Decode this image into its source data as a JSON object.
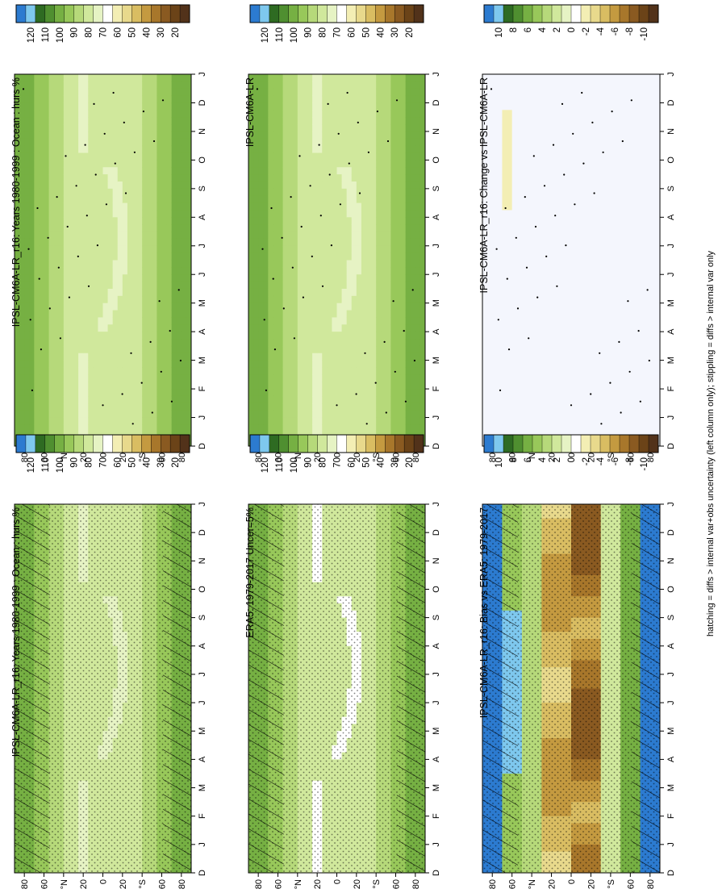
{
  "figure": {
    "footnote": "hatching = diffs > internal var+obs uncertainty (left column only); stippling = diffs > internal var only"
  },
  "chart_data": [
    {
      "type": "heatmap",
      "title": "IPSL-CM6A-LR_r16: Years 1980-1999 : Ocean : hurs %",
      "x_ticks": [
        "D",
        "J",
        "F",
        "M",
        "A",
        "M",
        "J",
        "J",
        "A",
        "S",
        "O",
        "N",
        "D",
        "J"
      ],
      "lat_ticks": [
        "80",
        "60",
        "°N",
        "20",
        "0",
        "20",
        "°S",
        "60",
        "80"
      ],
      "colorbar": {
        "key": "abs",
        "labels": [
          "120",
          "110",
          "100",
          "90",
          "80",
          "70",
          "60",
          "50",
          "40",
          "30",
          "20"
        ]
      },
      "kind": "abs",
      "hatch": true,
      "stipple": "dense"
    },
    {
      "type": "heatmap",
      "title": "IPSL-CM6A-LR_r16: Years 1980-1999 : Ocean : hurs %",
      "x_ticks": [
        "D",
        "J",
        "F",
        "M",
        "A",
        "M",
        "J",
        "J",
        "A",
        "S",
        "O",
        "N",
        "D",
        "J"
      ],
      "lat_ticks": [
        "80",
        "60",
        "°N",
        "20",
        "0",
        "20",
        "°S",
        "60",
        "80"
      ],
      "colorbar": {
        "key": "abs",
        "labels": [
          "120",
          "110",
          "100",
          "90",
          "80",
          "70",
          "60",
          "50",
          "40",
          "30",
          "20"
        ]
      },
      "kind": "abs",
      "hatch": false,
      "stipple": "sparse"
    },
    {
      "type": "heatmap",
      "title": "ERA5: 1979-2017 Uncer=5%",
      "x_ticks": [
        "D",
        "J",
        "F",
        "M",
        "A",
        "M",
        "J",
        "J",
        "A",
        "S",
        "O",
        "N",
        "D",
        "J"
      ],
      "lat_ticks": [
        "80",
        "60",
        "°N",
        "20",
        "0",
        "20",
        "°S",
        "60",
        "80"
      ],
      "colorbar": {
        "key": "abs",
        "labels": [
          "120",
          "110",
          "100",
          "90",
          "80",
          "70",
          "60",
          "50",
          "40",
          "30",
          "20"
        ]
      },
      "kind": "abs",
      "hatch": true,
      "stipple": "dense"
    },
    {
      "type": "heatmap",
      "title": "IPSL-CM6A-LR",
      "x_ticks": [
        "D",
        "J",
        "F",
        "M",
        "A",
        "M",
        "J",
        "J",
        "A",
        "S",
        "O",
        "N",
        "D",
        "J"
      ],
      "lat_ticks": [
        "80",
        "60",
        "°N",
        "20",
        "0",
        "20",
        "°S",
        "60",
        "80"
      ],
      "colorbar": {
        "key": "abs",
        "labels": [
          "120",
          "110",
          "100",
          "90",
          "80",
          "70",
          "60",
          "50",
          "40",
          "30",
          "20"
        ]
      },
      "kind": "abs",
      "hatch": false,
      "stipple": "sparse"
    },
    {
      "type": "heatmap",
      "title": "IPSL-CM6A-LR_r16: Bias vs ERA5: 1979-2017",
      "x_ticks": [
        "D",
        "J",
        "F",
        "M",
        "A",
        "M",
        "J",
        "J",
        "A",
        "S",
        "O",
        "N",
        "D",
        "J"
      ],
      "lat_ticks": [
        "80",
        "60",
        "°N",
        "20",
        "0",
        "20",
        "°S",
        "60",
        "80"
      ],
      "colorbar": {
        "key": "diff",
        "labels": [
          "10",
          "8",
          "6",
          "4",
          "2",
          "0",
          "-2",
          "-4",
          "-6",
          "-8",
          "-10"
        ]
      },
      "kind": "bias",
      "hatch": true,
      "stipple": "dense"
    },
    {
      "type": "heatmap",
      "title": "IPSL-CM6A-LR_r16: Change vs IPSL-CM6A-LR",
      "x_ticks": [
        "D",
        "J",
        "F",
        "M",
        "A",
        "M",
        "J",
        "J",
        "A",
        "S",
        "O",
        "N",
        "D",
        "J"
      ],
      "lat_ticks": [
        "80",
        "60",
        "°N",
        "20",
        "0",
        "20",
        "°S",
        "60",
        "80"
      ],
      "colorbar": {
        "key": "diff",
        "labels": [
          "10",
          "8",
          "6",
          "4",
          "2",
          "0",
          "-2",
          "-4",
          "-6",
          "-8",
          "-10"
        ]
      },
      "kind": "change",
      "hatch": false,
      "stipple": "sparse"
    }
  ],
  "palettes": {
    "abs": [
      "#2c7bd0",
      "#7ec8ee",
      "#2e6b22",
      "#4f8f30",
      "#76b043",
      "#98c85a",
      "#b6d97a",
      "#d0e89c",
      "#e6f3c4",
      "#ffffff",
      "#f3eeb4",
      "#e8d98c",
      "#d9bd62",
      "#c49a40",
      "#a8772b",
      "#8a5a21",
      "#6b4318",
      "#52321a"
    ],
    "diff": [
      "#2c7bd0",
      "#7ec8ee",
      "#2e6b22",
      "#4f8f30",
      "#76b043",
      "#98c85a",
      "#b6d97a",
      "#d0e89c",
      "#e6f3c4",
      "#ffffff",
      "#f3eeb4",
      "#e8d98c",
      "#d9bd62",
      "#c49a40",
      "#a8772b",
      "#8a5a21",
      "#6b4318",
      "#52321a"
    ]
  }
}
